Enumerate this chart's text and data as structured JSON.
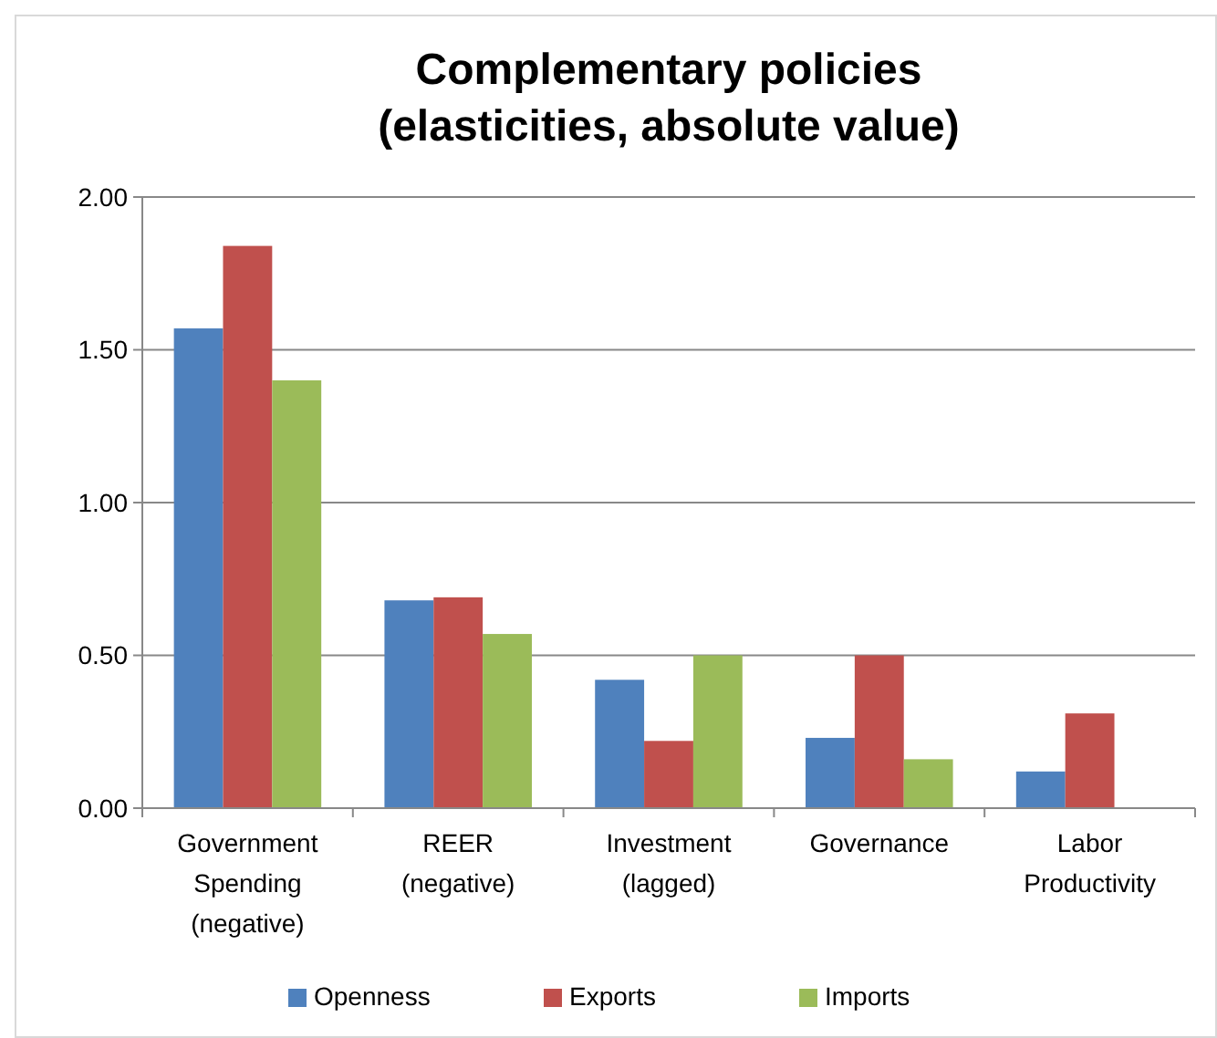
{
  "chart_data": {
    "type": "bar",
    "title": "Complementary policies\n(elasticities, absolute value)",
    "categories": [
      "Government\nSpending\n(negative)",
      "REER\n(negative)",
      "Investment\n(lagged)",
      "Governance",
      "Labor\nProductivity"
    ],
    "series": [
      {
        "name": "Openness",
        "color": "#4f81bd",
        "values": [
          1.57,
          0.68,
          0.42,
          0.23,
          0.12
        ]
      },
      {
        "name": "Exports",
        "color": "#c0504d",
        "values": [
          1.84,
          0.69,
          0.22,
          0.5,
          0.31
        ]
      },
      {
        "name": "Imports",
        "color": "#9bbb59",
        "values": [
          1.4,
          0.57,
          0.5,
          0.16,
          null
        ]
      }
    ],
    "ylim": [
      0,
      2
    ],
    "yticks": [
      {
        "value": 0,
        "label": "0.00"
      },
      {
        "value": 0.5,
        "label": "0.50"
      },
      {
        "value": 1,
        "label": "1.00"
      },
      {
        "value": 1.5,
        "label": "1.50"
      },
      {
        "value": 2,
        "label": "2.00"
      }
    ],
    "grid": "y",
    "legend": "bottom"
  }
}
